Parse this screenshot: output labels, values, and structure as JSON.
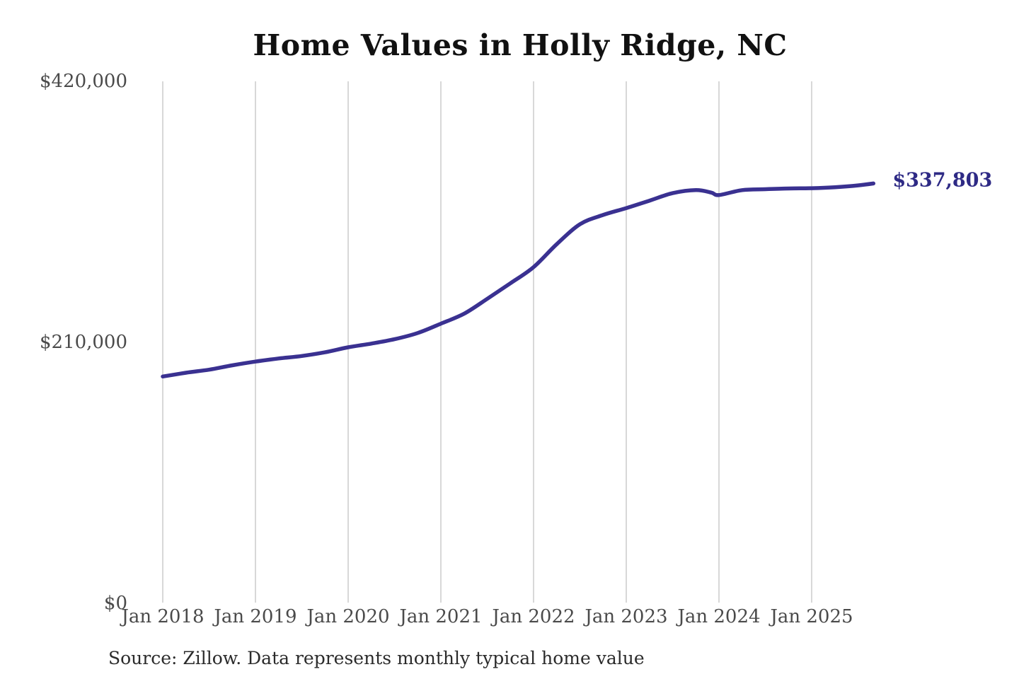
{
  "page": {
    "source_note": "Source: Zillow. Data represents monthly typical home value"
  },
  "chart_data": {
    "type": "line",
    "title": "Home Values in Holly Ridge, NC",
    "xlabel": "",
    "ylabel": "",
    "ylim": [
      0,
      420000
    ],
    "x_range": [
      "2018-01",
      "2025-09"
    ],
    "grid": "vertical-only",
    "legend": "none",
    "colors": {
      "line": "#3a3191",
      "end_label": "#2e2a85",
      "grid": "#cbcbcb",
      "axis_text": "#4a4a4a",
      "title_text": "#111111",
      "source_text": "#2b2b2b",
      "background": "#ffffff"
    },
    "y_ticks": [
      {
        "label": "$420,000",
        "value": 420000
      },
      {
        "label": "$210,000",
        "value": 210000
      },
      {
        "label": "$0",
        "value": 0
      }
    ],
    "x_ticks": [
      {
        "label": "Jan 2018",
        "date": "2018-01"
      },
      {
        "label": "Jan 2019",
        "date": "2019-01"
      },
      {
        "label": "Jan 2020",
        "date": "2020-01"
      },
      {
        "label": "Jan 2021",
        "date": "2021-01"
      },
      {
        "label": "Jan 2022",
        "date": "2022-01"
      },
      {
        "label": "Jan 2023",
        "date": "2023-01"
      },
      {
        "label": "Jan 2024",
        "date": "2024-01"
      },
      {
        "label": "Jan 2025",
        "date": "2025-01"
      }
    ],
    "series": [
      {
        "name": "Monthly typical home value",
        "color": "#3a3191",
        "points": [
          {
            "date": "2018-01",
            "value": 182500
          },
          {
            "date": "2018-04",
            "value": 185500
          },
          {
            "date": "2018-07",
            "value": 188000
          },
          {
            "date": "2018-10",
            "value": 191500
          },
          {
            "date": "2019-01",
            "value": 194500
          },
          {
            "date": "2019-04",
            "value": 197000
          },
          {
            "date": "2019-07",
            "value": 199000
          },
          {
            "date": "2019-10",
            "value": 202000
          },
          {
            "date": "2020-01",
            "value": 206000
          },
          {
            "date": "2020-04",
            "value": 209000
          },
          {
            "date": "2020-07",
            "value": 212500
          },
          {
            "date": "2020-10",
            "value": 217500
          },
          {
            "date": "2021-01",
            "value": 225000
          },
          {
            "date": "2021-04",
            "value": 233000
          },
          {
            "date": "2021-07",
            "value": 245000
          },
          {
            "date": "2021-10",
            "value": 257500
          },
          {
            "date": "2022-01",
            "value": 270500
          },
          {
            "date": "2022-04",
            "value": 289000
          },
          {
            "date": "2022-07",
            "value": 305000
          },
          {
            "date": "2022-10",
            "value": 312500
          },
          {
            "date": "2023-01",
            "value": 318000
          },
          {
            "date": "2023-04",
            "value": 324000
          },
          {
            "date": "2023-07",
            "value": 330000
          },
          {
            "date": "2023-10",
            "value": 332500
          },
          {
            "date": "2023-12",
            "value": 330500
          },
          {
            "date": "2024-01",
            "value": 328500
          },
          {
            "date": "2024-04",
            "value": 332500
          },
          {
            "date": "2024-07",
            "value": 333200
          },
          {
            "date": "2024-10",
            "value": 333800
          },
          {
            "date": "2025-01",
            "value": 334000
          },
          {
            "date": "2025-04",
            "value": 334800
          },
          {
            "date": "2025-07",
            "value": 336300
          },
          {
            "date": "2025-09",
            "value": 337803
          }
        ]
      }
    ],
    "end_label": {
      "text": "$337,803",
      "value": 337803,
      "date": "2025-09"
    }
  }
}
